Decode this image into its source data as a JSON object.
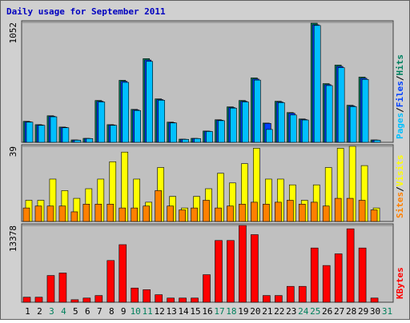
{
  "chart_data": [
    {
      "type": "bar",
      "title": "Daily usage for September 2011",
      "separator": "/",
      "ylim": [
        0,
        1052
      ],
      "yticks": [
        1052
      ],
      "series": [
        {
          "name": "Hits",
          "color": "#008060",
          "values": [
            184,
            155,
            233,
            134,
            21,
            35,
            367,
            155,
            544,
            289,
            734,
            381,
            177,
            28,
            35,
            99,
            198,
            311,
            367,
            565,
            169,
            360,
            261,
            205,
            1045,
            515,
            678,
            325,
            572,
            21,
            0
          ]
        },
        {
          "name": "Files",
          "color": "#0040ff",
          "values": [
            180,
            152,
            228,
            131,
            20,
            34,
            360,
            152,
            535,
            284,
            722,
            375,
            173,
            27,
            34,
            97,
            194,
            305,
            360,
            555,
            166,
            354,
            255,
            200,
            1031,
            506,
            666,
            319,
            562,
            20,
            0
          ]
        },
        {
          "name": "Pages",
          "color": "#00c0ff",
          "values": [
            177,
            149,
            224,
            128,
            19,
            33,
            354,
            149,
            526,
            279,
            710,
            369,
            170,
            26,
            33,
            95,
            190,
            300,
            354,
            546,
            113,
            348,
            240,
            196,
            1025,
            498,
            655,
            313,
            552,
            19,
            0
          ]
        }
      ]
    },
    {
      "type": "bar",
      "separator": "/",
      "ylim": [
        0,
        39
      ],
      "yticks": [
        39
      ],
      "series": [
        {
          "name": "Visits",
          "color": "#ffff00",
          "values": [
            11,
            11,
            22,
            16,
            12,
            17,
            22,
            31,
            36,
            22,
            10,
            28,
            13,
            7,
            13,
            17,
            25,
            20,
            30,
            38,
            22,
            22,
            19,
            11,
            19,
            28,
            38,
            39,
            29,
            7,
            0
          ]
        },
        {
          "name": "Sites",
          "color": "#ff8000",
          "values": [
            7,
            8,
            8,
            8,
            5,
            9,
            9,
            9,
            7,
            7,
            8,
            16,
            8,
            6,
            7,
            11,
            7,
            8,
            9,
            10,
            9,
            10,
            11,
            9,
            10,
            8,
            12,
            12,
            11,
            6,
            0
          ]
        }
      ]
    },
    {
      "type": "bar",
      "ylim": [
        0,
        13378
      ],
      "yticks": [
        13378
      ],
      "categories": [
        "1",
        "2",
        "3",
        "4",
        "5",
        "6",
        "7",
        "8",
        "9",
        "10",
        "11",
        "12",
        "13",
        "14",
        "15",
        "16",
        "17",
        "18",
        "19",
        "20",
        "21",
        "22",
        "23",
        "24",
        "25",
        "26",
        "27",
        "28",
        "29",
        "30",
        "31"
      ],
      "category_colors": [
        "#000000",
        "#000000",
        "#00805c",
        "#00805c",
        "#000000",
        "#000000",
        "#000000",
        "#000000",
        "#000000",
        "#00805c",
        "#00805c",
        "#000000",
        "#000000",
        "#000000",
        "#000000",
        "#000000",
        "#00805c",
        "#00805c",
        "#000000",
        "#000000",
        "#000000",
        "#000000",
        "#000000",
        "#00805c",
        "#00805c",
        "#000000",
        "#000000",
        "#000000",
        "#000000",
        "#000000",
        "#00805c"
      ],
      "series": [
        {
          "name": "KBytes",
          "color": "#ff0000",
          "values": [
            872,
            872,
            4653,
            5089,
            436,
            727,
            1163,
            7270,
            10033,
            2472,
            2181,
            1309,
            727,
            727,
            727,
            4798,
            10760,
            10760,
            13378,
            11776,
            1163,
            1163,
            2763,
            2763,
            9451,
            6397,
            8433,
            12795,
            9451,
            727,
            0
          ]
        }
      ]
    }
  ]
}
